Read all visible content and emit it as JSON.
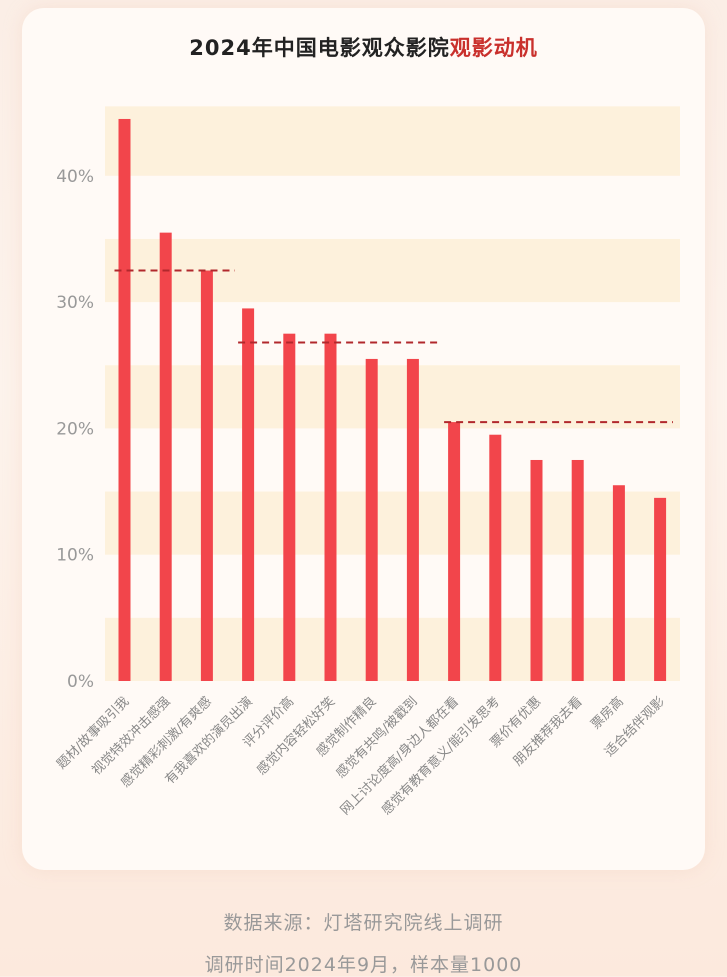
{
  "title": {
    "main": "2024年中国电影观众影院",
    "highlight": "观影动机"
  },
  "colors": {
    "bar": "#f2454b",
    "band": "#fdf1dc",
    "dash": "#b1282c",
    "tick": "#999999",
    "label": "#888888"
  },
  "chart_data": {
    "type": "bar",
    "title": "2024年中国电影观众影院观影动机",
    "xlabel": "",
    "ylabel": "",
    "ylim": [
      0,
      45
    ],
    "yticks": [
      "0%",
      "10%",
      "20%",
      "30%",
      "40%"
    ],
    "grid": false,
    "categories": [
      "题材/故事吸引我",
      "视觉特效冲击感强",
      "感觉精彩刺激/有爽感",
      "有我喜欢的演员出演",
      "评分评价高",
      "感觉内容轻松好笑",
      "感觉制作精良",
      "感觉有共鸣/被戳到",
      "网上讨论度高/身边人都在看",
      "感觉有教育意义/能引发思考",
      "票价有优惠",
      "朋友推荐我去看",
      "票房高",
      "适合结伴观影"
    ],
    "values": [
      44.5,
      35.5,
      32.5,
      29.5,
      27.5,
      27.5,
      25.5,
      25.5,
      20.5,
      19.5,
      17.5,
      17.5,
      15.5,
      14.5
    ],
    "reference_lines": [
      {
        "from": 0,
        "to": 2,
        "value": 32.5,
        "style": "dashed"
      },
      {
        "from": 3,
        "to": 7,
        "value": 26.8,
        "style": "dashed"
      },
      {
        "from": 8,
        "to": 13,
        "value": 20.5,
        "style": "dashed"
      }
    ]
  },
  "footer": {
    "source": "数据来源：灯塔研究院线上调研",
    "survey": "调研时间2024年9月，样本量1000"
  }
}
